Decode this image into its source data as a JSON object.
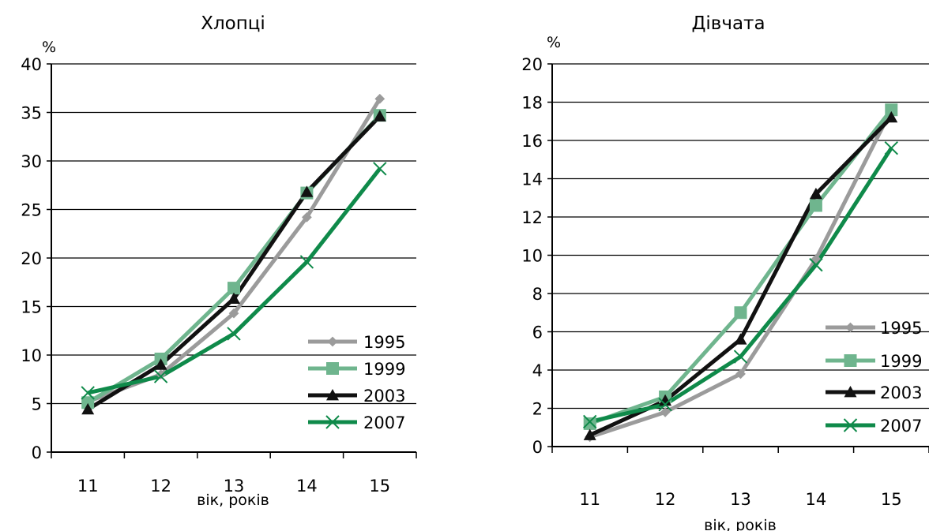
{
  "chart_data": [
    {
      "type": "line",
      "title": "Хлопці",
      "ylabel": "%",
      "xlabel": "вік, років",
      "categories": [
        "11",
        "12",
        "13",
        "14",
        "15"
      ],
      "ylim": [
        0,
        40
      ],
      "yticks": [
        "0",
        "5",
        "10",
        "15",
        "20",
        "25",
        "30",
        "35",
        "40"
      ],
      "grid": true,
      "legend_position": "bottom-right",
      "series": [
        {
          "name": "1995",
          "color": "#9b9b9b",
          "marker": "diamond",
          "values": [
            5.2,
            8.0,
            14.3,
            24.2,
            36.4
          ]
        },
        {
          "name": "1999",
          "color": "#6fb58e",
          "marker": "square",
          "values": [
            5.1,
            9.6,
            16.9,
            26.7,
            34.7
          ]
        },
        {
          "name": "2003",
          "color": "#111111",
          "marker": "triangle",
          "values": [
            4.4,
            9.0,
            15.8,
            26.8,
            34.6
          ]
        },
        {
          "name": "2007",
          "color": "#0f8a4a",
          "marker": "x",
          "values": [
            6.1,
            7.8,
            12.2,
            19.6,
            29.2
          ]
        }
      ]
    },
    {
      "type": "line",
      "title": "Дівчата",
      "ylabel": "%",
      "xlabel": "вік, років",
      "categories": [
        "11",
        "12",
        "13",
        "14",
        "15"
      ],
      "ylim": [
        0,
        20
      ],
      "yticks": [
        "0",
        "2",
        "4",
        "6",
        "8",
        "10",
        "12",
        "14",
        "16",
        "18",
        "20"
      ],
      "grid": true,
      "legend_position": "bottom-right",
      "series": [
        {
          "name": "1995",
          "color": "#9b9b9b",
          "marker": "diamond",
          "values": [
            0.5,
            1.8,
            3.8,
            9.8,
            17.6
          ]
        },
        {
          "name": "1999",
          "color": "#6fb58e",
          "marker": "square",
          "values": [
            1.2,
            2.6,
            7.0,
            12.6,
            17.6
          ]
        },
        {
          "name": "2003",
          "color": "#111111",
          "marker": "triangle",
          "values": [
            0.6,
            2.4,
            5.6,
            13.2,
            17.2
          ]
        },
        {
          "name": "2007",
          "color": "#0f8a4a",
          "marker": "x",
          "values": [
            1.3,
            2.2,
            4.7,
            9.5,
            15.6
          ]
        }
      ]
    }
  ]
}
